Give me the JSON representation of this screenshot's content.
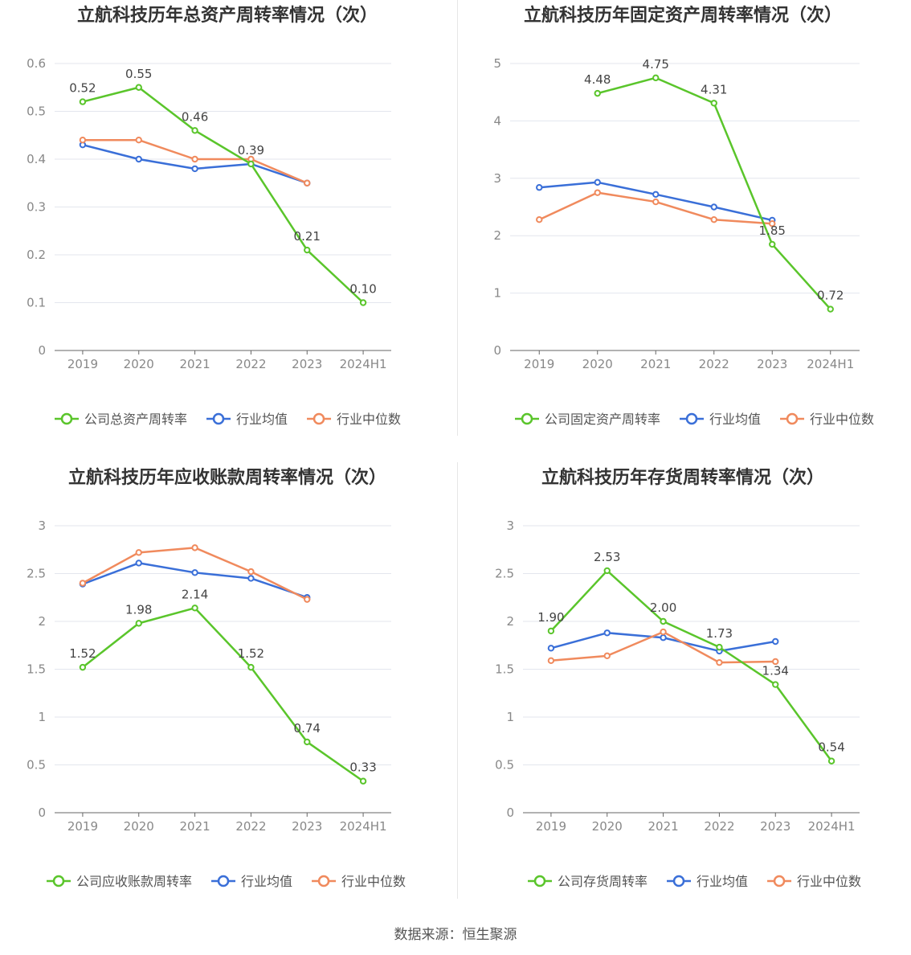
{
  "source_text": "数据来源：恒生聚源",
  "colors": {
    "company": "#5ac52b",
    "avg": "#3a6fd8",
    "median": "#f08a5d",
    "grid": "#e3e6ee",
    "axis": "#666666",
    "tick_text": "#888888",
    "title": "#333333"
  },
  "chart_data": [
    {
      "type": "line",
      "title": "立航科技历年总资产周转率情况（次）",
      "categories": [
        "2019",
        "2020",
        "2021",
        "2022",
        "2023",
        "2024H1"
      ],
      "ylim": [
        0,
        0.6
      ],
      "yticks": [
        0,
        0.1,
        0.2,
        0.3,
        0.4,
        0.5,
        0.6
      ],
      "ytick_labels": [
        "0",
        "0.1",
        "0.2",
        "0.3",
        "0.4",
        "0.5",
        "0.6"
      ],
      "grid": true,
      "legend_position": "bottom",
      "series": [
        {
          "name": "公司总资产周转率",
          "role": "company",
          "values": [
            0.52,
            0.55,
            0.46,
            0.39,
            0.21,
            0.1
          ],
          "labels": [
            "0.52",
            "0.55",
            "0.46",
            "0.39",
            "0.21",
            "0.10"
          ]
        },
        {
          "name": "行业均值",
          "role": "avg",
          "values": [
            0.43,
            0.4,
            0.38,
            0.39,
            0.35,
            null
          ]
        },
        {
          "name": "行业中位数",
          "role": "median",
          "values": [
            0.44,
            0.44,
            0.4,
            0.4,
            0.35,
            null
          ]
        }
      ]
    },
    {
      "type": "line",
      "title": "立航科技历年固定资产周转率情况（次）",
      "categories": [
        "2019",
        "2020",
        "2021",
        "2022",
        "2023",
        "2024H1"
      ],
      "ylim": [
        0,
        5
      ],
      "yticks": [
        0,
        1,
        2,
        3,
        4,
        5
      ],
      "ytick_labels": [
        "0",
        "1",
        "2",
        "3",
        "4",
        "5"
      ],
      "grid": true,
      "legend_position": "bottom",
      "series": [
        {
          "name": "公司固定资产周转率",
          "role": "company",
          "values": [
            null,
            4.48,
            4.75,
            4.31,
            1.85,
            0.72
          ],
          "labels": [
            null,
            "4.48",
            "4.75",
            "4.31",
            "1.85",
            "0.72"
          ]
        },
        {
          "name": "行业均值",
          "role": "avg",
          "values": [
            2.84,
            2.93,
            2.72,
            2.5,
            2.27,
            null
          ]
        },
        {
          "name": "行业中位数",
          "role": "median",
          "values": [
            2.28,
            2.75,
            2.59,
            2.28,
            2.21,
            null
          ]
        }
      ]
    },
    {
      "type": "line",
      "title": "立航科技历年应收账款周转率情况（次）",
      "categories": [
        "2019",
        "2020",
        "2021",
        "2022",
        "2023",
        "2024H1"
      ],
      "ylim": [
        0,
        3
      ],
      "yticks": [
        0,
        0.5,
        1,
        1.5,
        2,
        2.5,
        3
      ],
      "ytick_labels": [
        "0",
        "0.5",
        "1",
        "1.5",
        "2",
        "2.5",
        "3"
      ],
      "grid": true,
      "legend_position": "bottom",
      "series": [
        {
          "name": "公司应收账款周转率",
          "role": "company",
          "values": [
            1.52,
            1.98,
            2.14,
            1.52,
            0.74,
            0.33
          ],
          "labels": [
            "1.52",
            "1.98",
            "2.14",
            "1.52",
            "0.74",
            "0.33"
          ]
        },
        {
          "name": "行业均值",
          "role": "avg",
          "values": [
            2.39,
            2.61,
            2.51,
            2.45,
            2.25,
            null
          ]
        },
        {
          "name": "行业中位数",
          "role": "median",
          "values": [
            2.4,
            2.72,
            2.77,
            2.52,
            2.23,
            null
          ]
        }
      ]
    },
    {
      "type": "line",
      "title": "立航科技历年存货周转率情况（次）",
      "categories": [
        "2019",
        "2020",
        "2021",
        "2022",
        "2023",
        "2024H1"
      ],
      "ylim": [
        0,
        3
      ],
      "yticks": [
        0,
        0.5,
        1,
        1.5,
        2,
        2.5,
        3
      ],
      "ytick_labels": [
        "0",
        "0.5",
        "1",
        "1.5",
        "2",
        "2.5",
        "3"
      ],
      "grid": true,
      "legend_position": "bottom",
      "series": [
        {
          "name": "公司存货周转率",
          "role": "company",
          "values": [
            1.9,
            2.53,
            2.0,
            1.73,
            1.34,
            0.54
          ],
          "labels": [
            "1.90",
            "2.53",
            "2.00",
            "1.73",
            "1.34",
            "0.54"
          ]
        },
        {
          "name": "行业均值",
          "role": "avg",
          "values": [
            1.72,
            1.88,
            1.83,
            1.69,
            1.79,
            null
          ]
        },
        {
          "name": "行业中位数",
          "role": "median",
          "values": [
            1.59,
            1.64,
            1.89,
            1.57,
            1.58,
            null
          ]
        }
      ]
    }
  ]
}
